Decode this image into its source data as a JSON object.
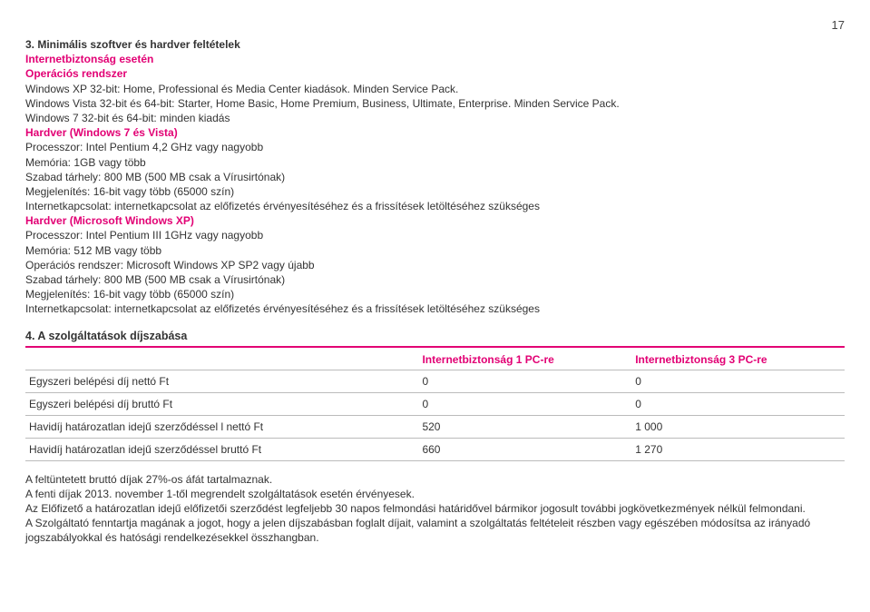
{
  "page_number": "17",
  "section3": {
    "title": "3. Minimális szoftver és hardver feltételek",
    "sub1": "Internetbiztonság esetén",
    "sub2": "Operációs rendszer",
    "lines": {
      "l1": "Windows XP 32-bit: Home, Professional és Media Center kiadások. Minden Service Pack.",
      "l2": "Windows Vista 32-bit és 64-bit: Starter, Home Basic, Home Premium, Business, Ultimate, Enterprise. Minden Service Pack.",
      "l3": "Windows 7 32-bit és 64-bit: minden kiadás"
    },
    "hw7_title": "Hardver (Windows 7 és Vista)",
    "hw7": {
      "l1": "Processzor: Intel Pentium 4,2 GHz vagy nagyobb",
      "l2": "Memória: 1GB vagy több",
      "l3": "Szabad tárhely: 800 MB (500 MB csak a Vírusirtónak)",
      "l4": "Megjelenítés: 16-bit vagy több (65000 szín)",
      "l5": "Internetkapcsolat: internetkapcsolat az előfizetés érvényesítéséhez és a frissítések letöltéséhez szükséges"
    },
    "hwxp_title": "Hardver (Microsoft Windows XP)",
    "hwxp": {
      "l1": "Processzor: Intel Pentium III 1GHz vagy nagyobb",
      "l2": "Memória: 512 MB vagy több",
      "l3": "Operációs rendszer: Microsoft Windows XP SP2 vagy újabb",
      "l4": "Szabad tárhely: 800 MB (500 MB csak a Vírusirtónak)",
      "l5": "Megjelenítés: 16-bit vagy több (65000 szín)",
      "l6": "Internetkapcsolat: internetkapcsolat az előfizetés érvényesítéséhez és a frissítések letöltéséhez szükséges"
    }
  },
  "section4": {
    "title": "4. A szolgáltatások díjszabása",
    "table": {
      "col1_header": "Internetbiztonság 1 PC-re",
      "col2_header": "Internetbiztonság 3 PC-re",
      "rows": [
        {
          "label": "Egyszeri belépési díj nettó Ft",
          "c1": "0",
          "c2": "0"
        },
        {
          "label": "Egyszeri belépési díj bruttó Ft",
          "c1": "0",
          "c2": "0"
        },
        {
          "label": "Havidíj határozatlan idejű szerződéssel l nettó Ft",
          "c1": "520",
          "c2": "1 000"
        },
        {
          "label": "Havidíj határozatlan idejű szerződéssel bruttó Ft",
          "c1": "660",
          "c2": "1 270"
        }
      ]
    }
  },
  "footer": {
    "l1": "A feltüntetett bruttó díjak 27%-os áfát tartalmaznak.",
    "l2": "A fenti díjak 2013. november 1-től megrendelt szolgáltatások esetén érvényesek.",
    "l3": "Az Előfizető a határozatlan idejű előfizetői szerződést legfeljebb 30 napos felmondási határidővel bármikor jogosult további jogkövetkezmények nélkül felmondani.",
    "l4": "A Szolgáltató fenntartja magának a jogot, hogy a jelen díjszabásban foglalt díjait, valamint a szolgáltatás feltételeit részben vagy egészében módosítsa az irányadó jogszabályokkal és hatósági rendelkezésekkel összhangban."
  }
}
